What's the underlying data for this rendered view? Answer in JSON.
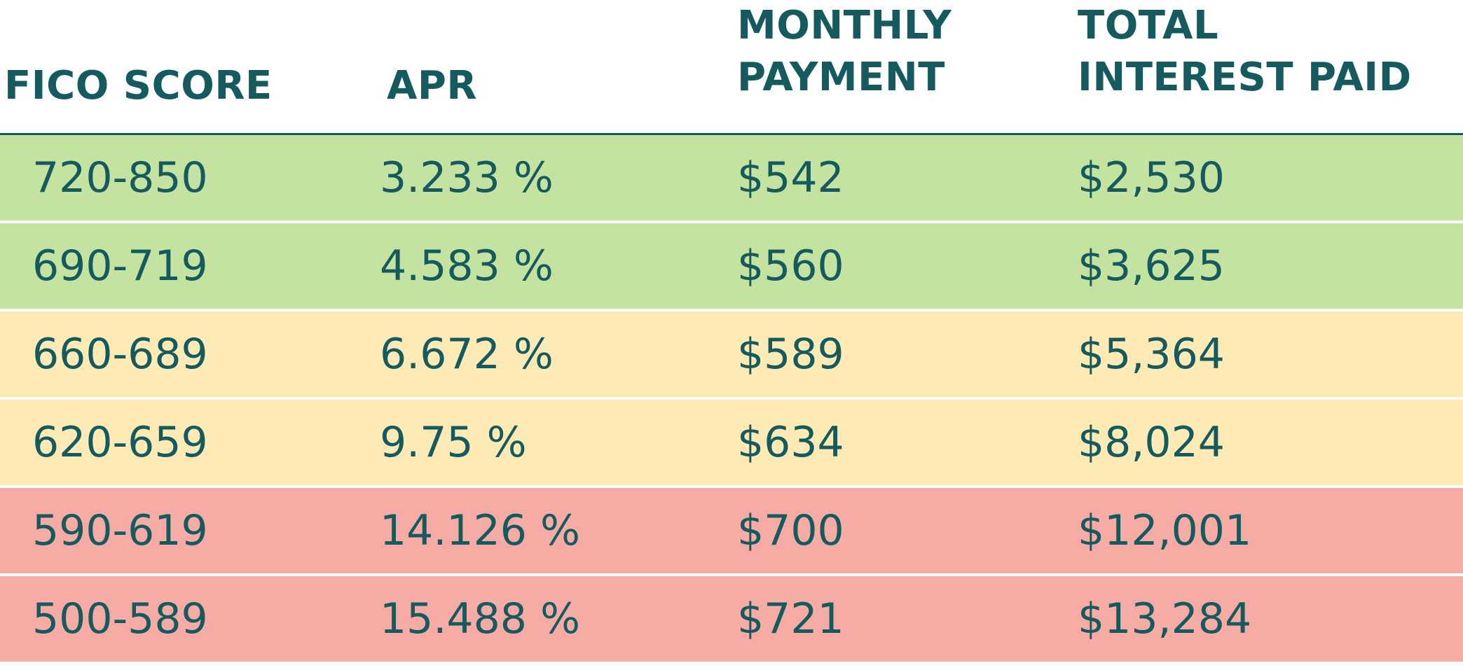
{
  "table": {
    "headers": {
      "fico": [
        "FICO SCORE"
      ],
      "apr": [
        "APR"
      ],
      "monthly": [
        "MONTHLY",
        "PAYMENT"
      ],
      "total": [
        "TOTAL",
        "INTEREST PAID"
      ]
    },
    "rows": [
      {
        "fico": "720-850",
        "apr": "3.233 %",
        "monthly": "$542",
        "total": "$2,530",
        "color": "#c5e3a0"
      },
      {
        "fico": "690-719",
        "apr": "4.583 %",
        "monthly": "$560",
        "total": "$3,625",
        "color": "#c5e3a0"
      },
      {
        "fico": "660-689",
        "apr": "6.672 %",
        "monthly": "$589",
        "total": "$5,364",
        "color": "#fdeab5"
      },
      {
        "fico": "620-659",
        "apr": "9.75 %",
        "monthly": "$634",
        "total": "$8,024",
        "color": "#fdeab5"
      },
      {
        "fico": "590-619",
        "apr": "14.126 %",
        "monthly": "$700",
        "total": "$12,001",
        "color": "#f6aca4"
      },
      {
        "fico": "500-589",
        "apr": "15.488 %",
        "monthly": "$721",
        "total": "$13,284",
        "color": "#f6aca4"
      }
    ]
  },
  "colors": {
    "text": "#145a5f",
    "good": "#c5e3a0",
    "fair": "#fdeab5",
    "poor": "#f6aca4"
  }
}
